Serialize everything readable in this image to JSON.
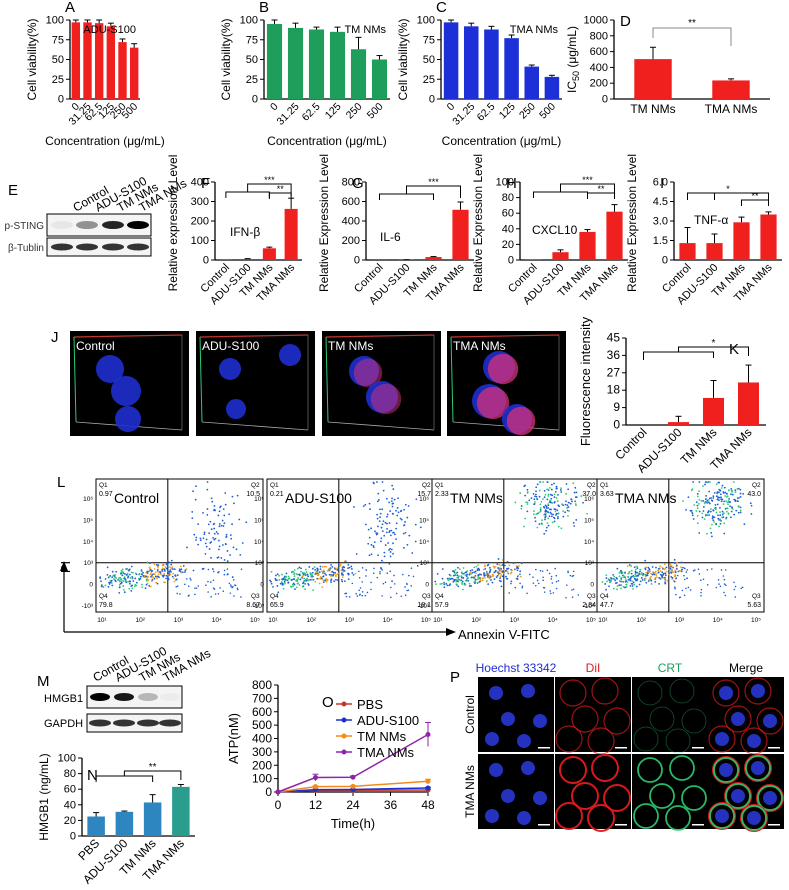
{
  "colors": {
    "red": "#f0201e",
    "green": "#1e9e5a",
    "blue": "#1d2fd6",
    "teal": "#2a9d8f",
    "steel": "#2e86c1",
    "black": "#000000"
  },
  "panelA": {
    "letter": "A",
    "label": "ADU-S100",
    "ylabel": "Cell viability(%)",
    "xlabel": "Concentration (μg/mL)",
    "color": "#f0201e",
    "categories": [
      "0",
      "31.25",
      "62.5",
      "125",
      "250",
      "500"
    ],
    "values": [
      97,
      97,
      96,
      92,
      72,
      65
    ],
    "errors": [
      3,
      3,
      4,
      4,
      4,
      5
    ],
    "yticks": [
      "0",
      "25",
      "50",
      "75",
      "100"
    ]
  },
  "panelB": {
    "letter": "B",
    "label": "TM NMs",
    "ylabel": "Cell viability(%)",
    "xlabel": "Concentration (μg/mL)",
    "color": "#1e9e5a",
    "categories": [
      "0",
      "31.25",
      "62.5",
      "125",
      "250",
      "500"
    ],
    "values": [
      95,
      90,
      88,
      85,
      63,
      50
    ],
    "errors": [
      5,
      6,
      3,
      6,
      15,
      5
    ],
    "yticks": [
      "0",
      "25",
      "50",
      "75",
      "100"
    ]
  },
  "panelC": {
    "letter": "C",
    "label": "TMA NMs",
    "ylabel": "Cell viability(%)",
    "xlabel": "Concentration (μg/mL)",
    "color": "#1d2fd6",
    "categories": [
      "0",
      "31.25",
      "62.5",
      "125",
      "250",
      "500"
    ],
    "values": [
      97,
      92,
      88,
      77,
      41,
      28
    ],
    "errors": [
      3,
      4,
      4,
      4,
      2,
      2
    ],
    "yticks": [
      "0",
      "25",
      "50",
      "75",
      "100"
    ]
  },
  "panelD": {
    "letter": "D",
    "ylabel": "IC50 (μg/mL)",
    "ylabel_main": "IC",
    "ylabel_sub": "50",
    "ylabel_unit": " (μg/mL)",
    "color": "#f0201e",
    "categories": [
      "TM NMs",
      "TMA NMs"
    ],
    "values": [
      505,
      235
    ],
    "errors": [
      150,
      20
    ],
    "yticks": [
      "0",
      "200",
      "400",
      "600",
      "800",
      "1000"
    ],
    "sig": "**"
  },
  "panelE": {
    "letter": "E",
    "lanes": [
      "Control",
      "ADU-S100",
      "TM NMs",
      "TMA NMs"
    ],
    "rows": [
      "p-STING",
      "β-Tublin"
    ]
  },
  "panelF": {
    "letter": "F",
    "name": "IFN-β",
    "ylabel": "Relative expression Level",
    "color": "#f0201e",
    "categories": [
      "Control",
      "ADU-S100",
      "TM NMs",
      "TMA NMs"
    ],
    "values": [
      1,
      5,
      60,
      262
    ],
    "errors": [
      0,
      2,
      6,
      55
    ],
    "yticks": [
      "0",
      "100",
      "200",
      "300",
      "400"
    ],
    "sig1": "***",
    "sig2": "**"
  },
  "panelG": {
    "letter": "G",
    "name": "IL-6",
    "ylabel": "Relative Expression Level",
    "color": "#f0201e",
    "categories": [
      "Control",
      "ADU-S100",
      "TM NMs",
      "TMA NMs"
    ],
    "values": [
      1,
      2,
      30,
      515
    ],
    "errors": [
      0,
      1,
      5,
      80
    ],
    "yticks": [
      "0",
      "200",
      "400",
      "600",
      "800"
    ],
    "sig1": "***"
  },
  "panelH": {
    "letter": "H",
    "name": "CXCL10",
    "ylabel": "Relative Expression Level",
    "color": "#f0201e",
    "categories": [
      "Control",
      "ADU-S100",
      "TM NMs",
      "TMA NMs"
    ],
    "values": [
      1,
      10,
      36,
      62
    ],
    "errors": [
      0,
      3,
      3,
      9
    ],
    "yticks": [
      "0",
      "20",
      "40",
      "60",
      "80",
      "100"
    ],
    "sig1": "***",
    "sig2": "**"
  },
  "panelI": {
    "letter": "I",
    "name": "TNF-α",
    "ylabel": "Relative Expression Level",
    "color": "#f0201e",
    "categories": [
      "Control",
      "ADU-S100",
      "TM NMs",
      "TMA NMs"
    ],
    "values": [
      1.3,
      1.3,
      2.9,
      3.5
    ],
    "errors": [
      1.2,
      0.7,
      0.4,
      0.2
    ],
    "yticks": [
      "0",
      "1.5",
      "3.0",
      "4.5",
      "6.0"
    ],
    "sig1": "*",
    "sig2": "**"
  },
  "panelJ": {
    "letter": "J",
    "labels": [
      "Control",
      "ADU-S100",
      "TM NMs",
      "TMA NMs"
    ]
  },
  "panelK": {
    "letter": "K",
    "ylabel": "Fluorescence intensity",
    "color": "#f0201e",
    "categories": [
      "Control",
      "ADU-S100",
      "TM NMs",
      "TMA NMs"
    ],
    "values": [
      0,
      1.5,
      14,
      22
    ],
    "errors": [
      0,
      3,
      9,
      9
    ],
    "yticks": [
      "0",
      "9",
      "18",
      "27",
      "36",
      "45"
    ],
    "sig": "*"
  },
  "panelL": {
    "letter": "L",
    "ylabel": "PI",
    "xlabel": "Annexin V-FITC",
    "plots": [
      {
        "name": "Control",
        "q1": "Q1",
        "q1v": "0.97",
        "q2": "Q2",
        "q2v": "10.5",
        "q3": "Q3",
        "q3v": "8.67",
        "q4": "Q4",
        "q4v": "79.8"
      },
      {
        "name": "ADU-S100",
        "q1": "Q1",
        "q1v": "0.21",
        "q2": "Q2",
        "q2v": "15.7",
        "q3": "Q3",
        "q3v": "18.1",
        "q4": "Q4",
        "q4v": "65.9"
      },
      {
        "name": "TM NMs",
        "q1": "Q1",
        "q1v": "2.33",
        "q2": "Q2",
        "q2v": "37.0",
        "q3": "Q3",
        "q3v": "2.84",
        "q4": "Q4",
        "q4v": "57.9"
      },
      {
        "name": "TMA NMs",
        "q1": "Q1",
        "q1v": "3.63",
        "q2": "Q2",
        "q2v": "43.0",
        "q3": "Q3",
        "q3v": "5.63",
        "q4": "Q4",
        "q4v": "47.7"
      }
    ],
    "yticks": [
      "10⁶",
      "10⁵",
      "10⁴",
      "10³",
      "0",
      "-10³"
    ],
    "xticks": [
      "10¹",
      "10²",
      "10³",
      "10⁴",
      "10⁵"
    ]
  },
  "panelM": {
    "letter": "M",
    "lanes": [
      "Control",
      "ADU-S100",
      "TM NMs",
      "TMA NMs"
    ],
    "rows": [
      "HMGB1",
      "GAPDH"
    ]
  },
  "panelN": {
    "letter": "N",
    "ylabel": "HMGB1 (ng/mL)",
    "categories": [
      "PBS",
      "ADU-S100",
      "TM NMs",
      "TMA NMs"
    ],
    "values": [
      25,
      31,
      43,
      63
    ],
    "errors": [
      5,
      1,
      10,
      3
    ],
    "colors": [
      "#2e86c1",
      "#2e86c1",
      "#2e86c1",
      "#2a9d8f"
    ],
    "yticks": [
      "0",
      "20",
      "40",
      "60",
      "80",
      "100"
    ],
    "sig": "**"
  },
  "panelO": {
    "letter": "O",
    "ylabel": "ATP(nM)",
    "xlabel": "Time(h)",
    "xticks": [
      "0",
      "12",
      "24",
      "36",
      "48"
    ],
    "yticks": [
      "0",
      "100",
      "200",
      "300",
      "400",
      "500",
      "600",
      "700",
      "800"
    ],
    "series": [
      {
        "name": "PBS",
        "color": "#c0392b",
        "x": [
          12,
          24,
          48
        ],
        "y": [
          12,
          13,
          15
        ],
        "err": [
          2,
          2,
          3
        ]
      },
      {
        "name": "ADU-S100",
        "color": "#1d2fd6",
        "x": [
          12,
          24,
          48
        ],
        "y": [
          18,
          19,
          30
        ],
        "err": [
          3,
          3,
          5
        ]
      },
      {
        "name": "TM NMs",
        "color": "#f28b18",
        "x": [
          12,
          24,
          48
        ],
        "y": [
          40,
          42,
          80
        ],
        "err": [
          5,
          5,
          15
        ]
      },
      {
        "name": "TMA NMs",
        "color": "#8e24aa",
        "x": [
          12,
          24,
          48
        ],
        "y": [
          108,
          110,
          430
        ],
        "err": [
          25,
          10,
          90
        ]
      }
    ]
  },
  "panelP": {
    "letter": "P",
    "columns": [
      "Hoechst 33342",
      "DiI",
      "CRT",
      "Merge"
    ],
    "column_colors": [
      "#1d2fd6",
      "#e31a1c",
      "#1e9e5a",
      "#000000"
    ],
    "rows": [
      "Control",
      "TMA NMs"
    ]
  }
}
